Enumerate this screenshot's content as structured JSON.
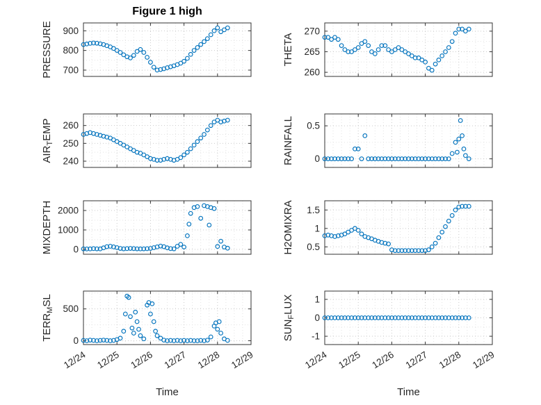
{
  "style": {
    "background": "#ffffff",
    "text_color": "#262626",
    "axis_color": "#333333",
    "grid_color": "#c9c9c9",
    "minor_grid_color": "#e3e3e3",
    "marker_color": "#0072BD"
  },
  "chart_data": {
    "type": "scatter",
    "title": "Figure 1 high",
    "xlabel": "Time",
    "xlim": [
      0,
      5
    ],
    "xticks": [
      0,
      1,
      2,
      3,
      4,
      5
    ],
    "xtick_labels": [
      "12/24",
      "12/25",
      "12/26",
      "12/27",
      "12/28",
      "12/29"
    ],
    "x_unit": "days since 12/24",
    "marker": {
      "shape": "open-circle",
      "color": "#0072BD"
    },
    "x_default": [
      0,
      0.1,
      0.2,
      0.3,
      0.4,
      0.5,
      0.6,
      0.7,
      0.8,
      0.9,
      1,
      1.1,
      1.2,
      1.3,
      1.4,
      1.5,
      1.6,
      1.7,
      1.8,
      1.9,
      2,
      2.1,
      2.2,
      2.3,
      2.4,
      2.5,
      2.6,
      2.7,
      2.8,
      2.9,
      3,
      3.1,
      3.2,
      3.3,
      3.4,
      3.5,
      3.6,
      3.7,
      3.8,
      3.9,
      4,
      4.1,
      4.2,
      4.3
    ],
    "panels": [
      {
        "name": "pressure",
        "ylabel": "PRESSURE",
        "ylabel_parts": [
          {
            "t": "PRESSURE"
          }
        ],
        "row": 0,
        "col": 0,
        "yticks": [
          700,
          800,
          900
        ],
        "ylim": [
          668,
          940
        ],
        "x": null,
        "y": [
          830,
          833,
          836,
          838,
          837,
          834,
          830,
          824,
          818,
          810,
          800,
          790,
          778,
          768,
          762,
          775,
          795,
          805,
          790,
          765,
          740,
          715,
          700,
          703,
          707,
          712,
          717,
          722,
          728,
          735,
          745,
          760,
          780,
          800,
          815,
          830,
          845,
          860,
          880,
          900,
          915,
          895,
          905,
          915
        ]
      },
      {
        "name": "theta",
        "ylabel": "THETA",
        "ylabel_parts": [
          {
            "t": "THETA"
          }
        ],
        "row": 0,
        "col": 1,
        "yticks": [
          260,
          265,
          270
        ],
        "ylim": [
          259,
          272
        ],
        "x": null,
        "y": [
          268.5,
          268.5,
          268,
          268.5,
          268,
          266.5,
          265.5,
          265,
          265,
          265.5,
          266,
          267,
          267.5,
          266.5,
          265,
          264.5,
          265.5,
          266.5,
          266.5,
          265.5,
          265,
          265.5,
          266,
          265.5,
          265,
          264.5,
          264,
          263.5,
          263.5,
          263,
          262.5,
          261,
          260.5,
          262,
          263,
          264,
          265,
          266,
          267.5,
          269.5,
          270.5,
          270.5,
          270,
          270.5
        ]
      },
      {
        "name": "air-temp",
        "ylabel": "AIR_TEMP",
        "ylabel_parts": [
          {
            "t": "AIR"
          },
          {
            "t": "T",
            "sub": true
          },
          {
            "t": "EMP"
          }
        ],
        "row": 1,
        "col": 0,
        "yticks": [
          240,
          250,
          260
        ],
        "ylim": [
          236.5,
          266.5
        ],
        "x": null,
        "y": [
          255,
          255.5,
          256,
          255.5,
          255,
          254.5,
          254,
          253.5,
          253,
          252,
          251,
          250,
          249,
          248,
          247,
          246,
          245,
          244.5,
          243.5,
          242.5,
          241.5,
          241,
          240.5,
          240.5,
          241,
          241.5,
          241,
          240.5,
          241,
          242,
          243.5,
          245,
          247,
          249,
          251,
          253,
          255,
          257.5,
          260,
          262,
          263,
          262,
          262.5,
          263
        ]
      },
      {
        "name": "rainfall",
        "ylabel": "RAINFALL",
        "ylabel_parts": [
          {
            "t": "RAINFALL"
          }
        ],
        "row": 1,
        "col": 1,
        "yticks": [
          0,
          0.5
        ],
        "ylim": [
          -0.13,
          0.68
        ],
        "x": [
          0,
          0.1,
          0.2,
          0.3,
          0.4,
          0.5,
          0.6,
          0.7,
          0.8,
          0.9,
          1,
          1.1,
          1.2,
          1.3,
          1.4,
          1.5,
          1.6,
          1.7,
          1.8,
          1.9,
          2,
          2.1,
          2.2,
          2.3,
          2.4,
          2.5,
          2.6,
          2.7,
          2.8,
          2.9,
          3,
          3.1,
          3.2,
          3.3,
          3.4,
          3.5,
          3.6,
          3.7,
          3.8,
          3.9,
          3.95,
          4,
          4.05,
          4.1,
          4.15,
          4.2,
          4.3
        ],
        "y": [
          0,
          0,
          0,
          0,
          0,
          0,
          0,
          0,
          0,
          0.15,
          0.15,
          0,
          0.35,
          0,
          0,
          0,
          0,
          0,
          0,
          0,
          0,
          0,
          0,
          0,
          0,
          0,
          0,
          0,
          0,
          0,
          0,
          0,
          0,
          0,
          0,
          0,
          0,
          0,
          0.08,
          0.25,
          0.1,
          0.3,
          0.58,
          0.35,
          0.15,
          0.05,
          0
        ]
      },
      {
        "name": "mixdepth",
        "ylabel": "MIXDEPTH",
        "ylabel_parts": [
          {
            "t": "MIXDEPTH"
          }
        ],
        "row": 2,
        "col": 0,
        "yticks": [
          0,
          1000,
          2000
        ],
        "ylim": [
          -250,
          2500
        ],
        "x": [
          0,
          0.1,
          0.2,
          0.3,
          0.4,
          0.5,
          0.6,
          0.7,
          0.8,
          0.9,
          1,
          1.1,
          1.2,
          1.3,
          1.4,
          1.5,
          1.6,
          1.7,
          1.8,
          1.9,
          2,
          2.1,
          2.2,
          2.3,
          2.4,
          2.5,
          2.6,
          2.7,
          2.8,
          2.9,
          3,
          3.1,
          3.15,
          3.2,
          3.3,
          3.4,
          3.5,
          3.6,
          3.7,
          3.75,
          3.8,
          3.9,
          4,
          4.1,
          4.2,
          4.3
        ],
        "y": [
          30,
          20,
          25,
          40,
          30,
          25,
          80,
          140,
          160,
          130,
          90,
          50,
          30,
          40,
          50,
          40,
          30,
          25,
          30,
          35,
          50,
          90,
          130,
          170,
          140,
          80,
          40,
          30,
          160,
          260,
          120,
          700,
          1300,
          1850,
          2150,
          2200,
          1600,
          2250,
          2200,
          1250,
          2150,
          2100,
          150,
          420,
          120,
          60
        ]
      },
      {
        "name": "h2omixra",
        "ylabel": "H2OMIXRA",
        "ylabel_parts": [
          {
            "t": "H2OMIXRA"
          }
        ],
        "row": 2,
        "col": 1,
        "yticks": [
          0.5,
          1,
          1.5
        ],
        "ylim": [
          0.3,
          1.75
        ],
        "x": null,
        "y": [
          0.8,
          0.82,
          0.8,
          0.78,
          0.8,
          0.82,
          0.85,
          0.9,
          0.95,
          1,
          0.95,
          0.85,
          0.78,
          0.75,
          0.72,
          0.68,
          0.65,
          0.62,
          0.6,
          0.58,
          0.42,
          0.4,
          0.4,
          0.4,
          0.4,
          0.4,
          0.4,
          0.4,
          0.4,
          0.4,
          0.4,
          0.42,
          0.5,
          0.6,
          0.75,
          0.9,
          1.05,
          1.2,
          1.35,
          1.5,
          1.58,
          1.6,
          1.6,
          1.6
        ]
      },
      {
        "name": "terr-msl",
        "ylabel": "TERR_MSL",
        "ylabel_parts": [
          {
            "t": "TERR"
          },
          {
            "t": "M",
            "sub": true
          },
          {
            "t": "SL"
          }
        ],
        "row": 3,
        "col": 0,
        "yticks": [
          0,
          500
        ],
        "ylim": [
          -60,
          780
        ],
        "x": [
          0,
          0.1,
          0.2,
          0.3,
          0.4,
          0.5,
          0.6,
          0.7,
          0.8,
          0.9,
          1,
          1.1,
          1.2,
          1.25,
          1.3,
          1.35,
          1.4,
          1.45,
          1.5,
          1.55,
          1.6,
          1.65,
          1.7,
          1.8,
          1.9,
          1.95,
          2,
          2.05,
          2.1,
          2.15,
          2.2,
          2.3,
          2.4,
          2.5,
          2.6,
          2.7,
          2.8,
          2.9,
          3,
          3.1,
          3.2,
          3.3,
          3.4,
          3.5,
          3.6,
          3.7,
          3.8,
          3.9,
          3.95,
          4,
          4.05,
          4.1,
          4.2,
          4.3
        ],
        "y": [
          5,
          0,
          10,
          5,
          0,
          5,
          10,
          5,
          0,
          5,
          20,
          40,
          150,
          420,
          700,
          680,
          380,
          200,
          120,
          450,
          300,
          180,
          80,
          30,
          560,
          600,
          420,
          580,
          300,
          150,
          80,
          40,
          10,
          0,
          5,
          0,
          5,
          0,
          5,
          0,
          5,
          0,
          0,
          5,
          0,
          10,
          60,
          230,
          280,
          180,
          300,
          120,
          30,
          5
        ]
      },
      {
        "name": "sun-flux",
        "ylabel": "SUN_FLUX",
        "ylabel_parts": [
          {
            "t": "SUN"
          },
          {
            "t": "F",
            "sub": true
          },
          {
            "t": "LUX"
          }
        ],
        "row": 3,
        "col": 1,
        "yticks": [
          -1,
          0,
          1
        ],
        "ylim": [
          -1.45,
          1.45
        ],
        "x": null,
        "y": [
          0,
          0,
          0,
          0,
          0,
          0,
          0,
          0,
          0,
          0,
          0,
          0,
          0,
          0,
          0,
          0,
          0,
          0,
          0,
          0,
          0,
          0,
          0,
          0,
          0,
          0,
          0,
          0,
          0,
          0,
          0,
          0,
          0,
          0,
          0,
          0,
          0,
          0,
          0,
          0,
          0,
          0,
          0,
          0
        ]
      }
    ]
  }
}
